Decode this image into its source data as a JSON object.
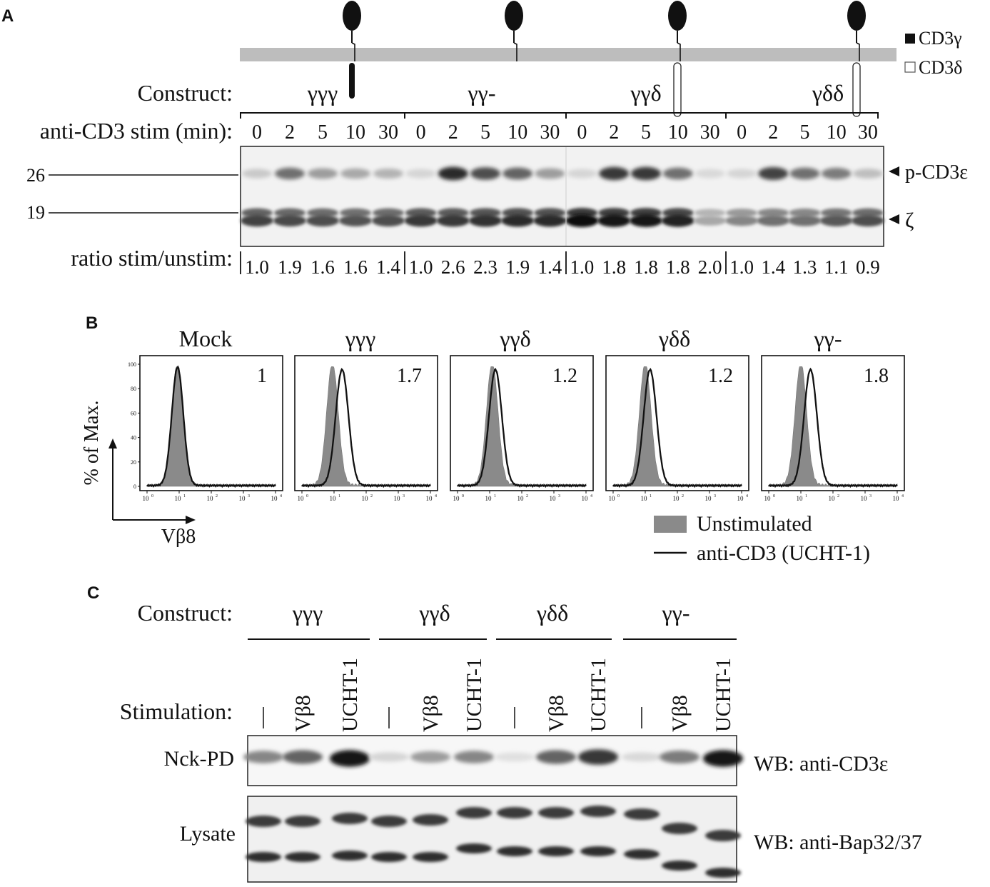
{
  "colors": {
    "ink": "#111111",
    "membrane": "#bdbdbd",
    "blot_bg": "#f2f2f2",
    "unstim_fill": "#8a8a8a"
  },
  "panelA": {
    "letter": "A",
    "legend_gamma": "CD3γ",
    "legend_delta": "CD3δ",
    "construct_label": "Construct:",
    "constructs": [
      "γγγ",
      "γγ-",
      "γγδ",
      "γδδ"
    ],
    "stim_label": "anti-CD3 stim (min):",
    "timepoints": [
      "0",
      "2",
      "5",
      "10",
      "30"
    ],
    "mw": [
      "26",
      "19"
    ],
    "band_labels": [
      "p-CD3ε",
      "ζ"
    ],
    "ratio_label": "ratio stim/unstim:",
    "ratios": [
      [
        "1.0",
        "1.9",
        "1.6",
        "1.6",
        "1.4"
      ],
      [
        "1.0",
        "2.6",
        "2.3",
        "1.9",
        "1.4"
      ],
      [
        "1.0",
        "1.8",
        "1.8",
        "1.8",
        "2.0"
      ],
      [
        "1.0",
        "1.4",
        "1.3",
        "1.1",
        "0.9"
      ]
    ],
    "pcd3e_intensity": [
      [
        0.15,
        0.55,
        0.35,
        0.3,
        0.25
      ],
      [
        0.1,
        0.85,
        0.7,
        0.6,
        0.35
      ],
      [
        0.1,
        0.8,
        0.8,
        0.55,
        0.08
      ],
      [
        0.1,
        0.75,
        0.55,
        0.5,
        0.2
      ]
    ],
    "zeta_intensity": [
      [
        0.75,
        0.72,
        0.7,
        0.68,
        0.7
      ],
      [
        0.8,
        0.8,
        0.82,
        0.85,
        0.85
      ],
      [
        0.98,
        0.95,
        0.95,
        0.9,
        0.3
      ],
      [
        0.45,
        0.55,
        0.55,
        0.65,
        0.7
      ]
    ]
  },
  "panelB": {
    "letter": "B",
    "ylabel": "% of Max.",
    "xlabel": "Vβ8",
    "yticks": [
      "0",
      "20",
      "40",
      "60",
      "80",
      "100"
    ],
    "xticks": [
      "10",
      "10",
      "10",
      "10",
      "10"
    ],
    "xtick_exps": [
      "0",
      "1",
      "2",
      "3",
      "4"
    ],
    "histograms": [
      {
        "title": "Mock",
        "value": "1",
        "unstim_peak": 0.95,
        "stim_peak": 0.95
      },
      {
        "title": "γγγ",
        "value": "1.7",
        "unstim_peak": 0.95,
        "stim_peak": 1.25
      },
      {
        "title": "γγδ",
        "value": "1.2",
        "unstim_peak": 1.08,
        "stim_peak": 1.18
      },
      {
        "title": "γδδ",
        "value": "1.2",
        "unstim_peak": 1.0,
        "stim_peak": 1.15
      },
      {
        "title": "γγ-",
        "value": "1.8",
        "unstim_peak": 1.0,
        "stim_peak": 1.3
      }
    ],
    "legend": [
      "Unstimulated",
      "anti-CD3 (UCHT-1)"
    ]
  },
  "panelC": {
    "letter": "C",
    "construct_label": "Construct:",
    "constructs": [
      "γγγ",
      "γγδ",
      "γδδ",
      "γγ-"
    ],
    "stim_label": "Stimulation:",
    "stims": [
      "|",
      "Vβ8",
      "UCHT-1"
    ],
    "row_labels": [
      "Nck-PD",
      "Lysate"
    ],
    "wb_labels": [
      "WB: anti-CD3ε",
      "WB: anti-Bap32/37"
    ],
    "nck_intensity": [
      0.45,
      0.6,
      0.95,
      0.1,
      0.35,
      0.45,
      0.05,
      0.6,
      0.8,
      0.08,
      0.5,
      0.95
    ]
  }
}
